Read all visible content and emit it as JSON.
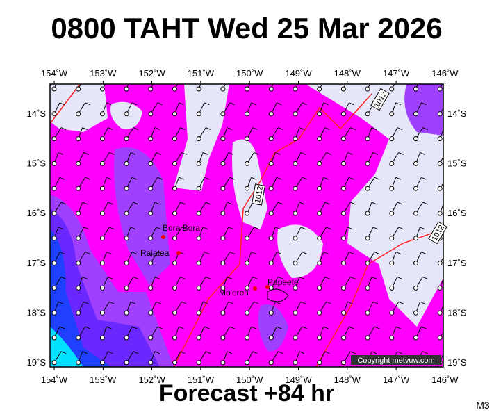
{
  "header": {
    "title": "0800 TAHT Wed 25 Mar 2026"
  },
  "map": {
    "lon_ticks": [
      "154˚W",
      "153˚W",
      "152˚W",
      "151˚W",
      "150˚W",
      "149˚W",
      "148˚W",
      "147˚W",
      "146˚W"
    ],
    "lat_ticks": [
      "14˚S",
      "15˚S",
      "16˚S",
      "17˚S",
      "18˚S",
      "19˚S"
    ],
    "places": [
      "Bora Bora",
      "Raiatea",
      "Mo'orea",
      "Papeete"
    ],
    "isobar_labels": [
      "1012",
      "1012",
      "1012"
    ],
    "copyright": "Copyright metvuw.com"
  },
  "footer": {
    "forecast": "Forecast +84 hr",
    "code": "M3"
  }
}
